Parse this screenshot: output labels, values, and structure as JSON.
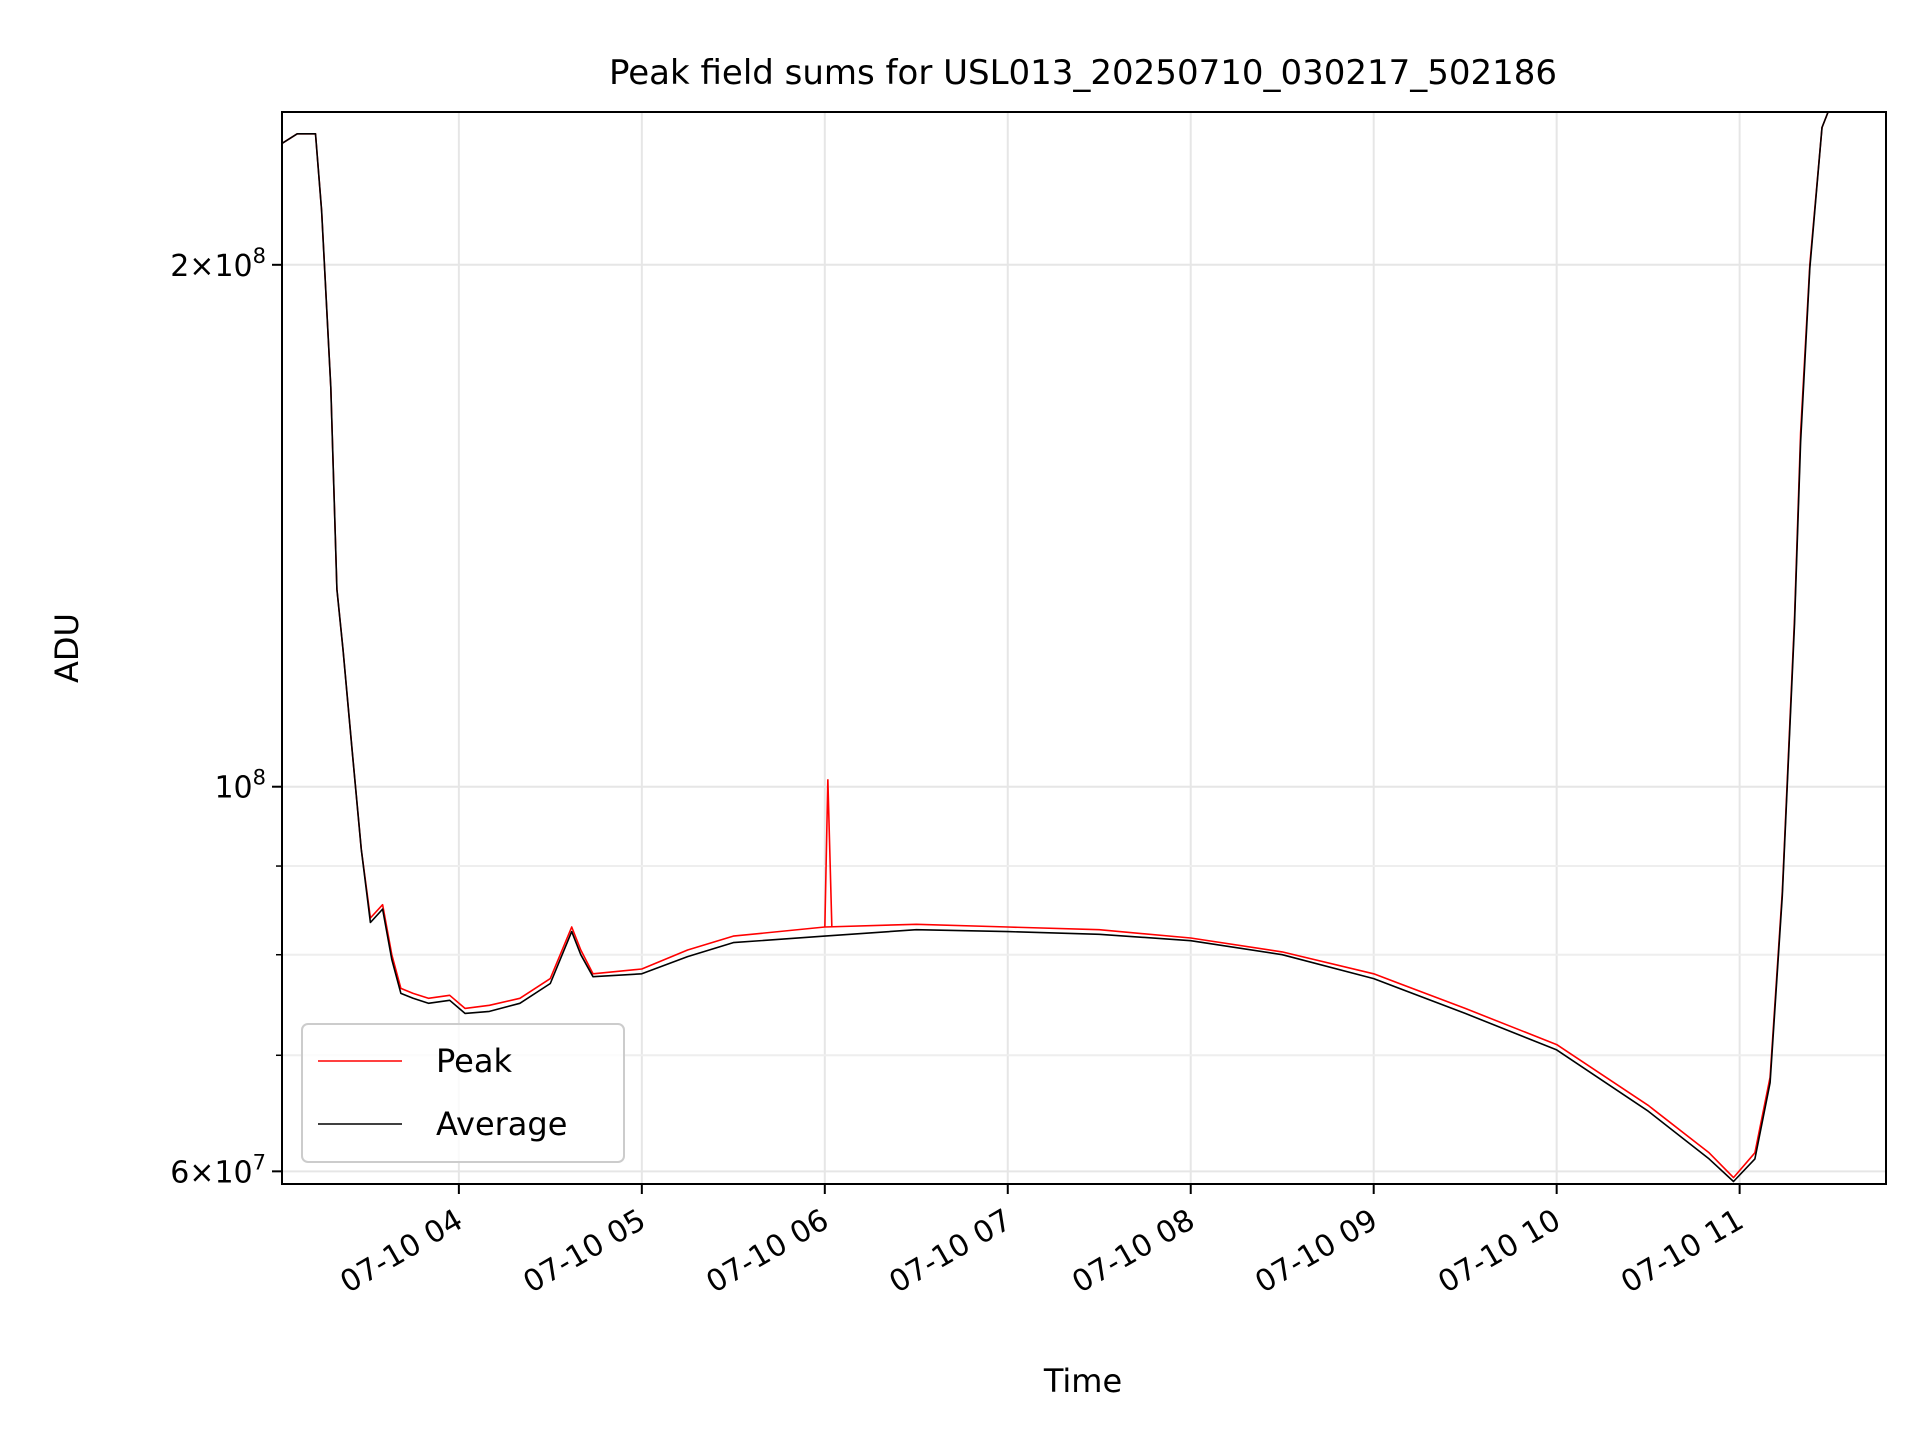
{
  "chart_data": {
    "type": "line",
    "title": "Peak field sums for USL013_20250710_030217_502186",
    "xlabel": "Time",
    "ylabel": "ADU",
    "yscale": "log",
    "xlim": [
      "2025-07-10 03:02",
      "2025-07-10 11:48"
    ],
    "ylim": [
      59000000,
      245000000
    ],
    "grid": true,
    "legend_position": "lower-left",
    "x_ticks": [
      {
        "value": "2025-07-10 04:00",
        "label": "07-10 04"
      },
      {
        "value": "2025-07-10 05:00",
        "label": "07-10 05"
      },
      {
        "value": "2025-07-10 06:00",
        "label": "07-10 06"
      },
      {
        "value": "2025-07-10 07:00",
        "label": "07-10 07"
      },
      {
        "value": "2025-07-10 08:00",
        "label": "07-10 08"
      },
      {
        "value": "2025-07-10 09:00",
        "label": "07-10 09"
      },
      {
        "value": "2025-07-10 10:00",
        "label": "07-10 10"
      },
      {
        "value": "2025-07-10 11:00",
        "label": "07-10 11"
      }
    ],
    "y_ticks": [
      {
        "value": 60000000,
        "mantissa": "6",
        "exponent": "7"
      },
      {
        "value": 100000000,
        "mantissa": "",
        "exponent": "8"
      },
      {
        "value": 200000000,
        "mantissa": "2",
        "exponent": "8"
      }
    ],
    "y_minor_ticks": [
      70000000,
      80000000,
      90000000
    ],
    "series": [
      {
        "name": "Peak",
        "color": "#ff0000",
        "points": [
          [
            "2025-07-10 03:02",
            235000000
          ],
          [
            "2025-07-10 03:07",
            238000000
          ],
          [
            "2025-07-10 03:13",
            238000000
          ],
          [
            "2025-07-10 03:15",
            215000000
          ],
          [
            "2025-07-10 03:18",
            170000000
          ],
          [
            "2025-07-10 03:20",
            130000000
          ],
          [
            "2025-07-10 03:22",
            120000000
          ],
          [
            "2025-07-10 03:25",
            105000000
          ],
          [
            "2025-07-10 03:28",
            92000000
          ],
          [
            "2025-07-10 03:31",
            84000000
          ],
          [
            "2025-07-10 03:35",
            85500000
          ],
          [
            "2025-07-10 03:38",
            80000000
          ],
          [
            "2025-07-10 03:41",
            76500000
          ],
          [
            "2025-07-10 03:45",
            76000000
          ],
          [
            "2025-07-10 03:50",
            75500000
          ],
          [
            "2025-07-10 03:57",
            75800000
          ],
          [
            "2025-07-10 04:02",
            74500000
          ],
          [
            "2025-07-10 04:10",
            74800000
          ],
          [
            "2025-07-10 04:20",
            75500000
          ],
          [
            "2025-07-10 04:30",
            77500000
          ],
          [
            "2025-07-10 04:37",
            83000000
          ],
          [
            "2025-07-10 04:40",
            80500000
          ],
          [
            "2025-07-10 04:44",
            78000000
          ],
          [
            "2025-07-10 05:00",
            78500000
          ],
          [
            "2025-07-10 05:15",
            80500000
          ],
          [
            "2025-07-10 05:30",
            82000000
          ],
          [
            "2025-07-10 06:00",
            83000000
          ],
          [
            "2025-07-10 06:30",
            83300000
          ],
          [
            "2025-07-10 07:00",
            83000000
          ],
          [
            "2025-07-10 07:30",
            82700000
          ],
          [
            "2025-07-10 08:00",
            81800000
          ],
          [
            "2025-07-10 08:30",
            80300000
          ],
          [
            "2025-07-10 09:00",
            78000000
          ],
          [
            "2025-07-10 09:30",
            74500000
          ],
          [
            "2025-07-10 10:00",
            71000000
          ],
          [
            "2025-07-10 10:30",
            65500000
          ],
          [
            "2025-07-10 10:50",
            61500000
          ],
          [
            "2025-07-10 10:58",
            59500000
          ],
          [
            "2025-07-10 11:05",
            61500000
          ],
          [
            "2025-07-10 11:10",
            68000000
          ],
          [
            "2025-07-10 11:14",
            87000000
          ],
          [
            "2025-07-10 11:18",
            125000000
          ],
          [
            "2025-07-10 11:20",
            160000000
          ],
          [
            "2025-07-10 11:23",
            200000000
          ],
          [
            "2025-07-10 11:27",
            240000000
          ],
          [
            "2025-07-10 11:29",
            245000000
          ]
        ],
        "spikes": [
          [
            "2025-07-10 06:01",
            101000000
          ]
        ]
      },
      {
        "name": "Average",
        "color": "#000000",
        "points": [
          [
            "2025-07-10 03:02",
            235000000
          ],
          [
            "2025-07-10 03:07",
            238000000
          ],
          [
            "2025-07-10 03:13",
            238000000
          ],
          [
            "2025-07-10 03:15",
            215000000
          ],
          [
            "2025-07-10 03:18",
            170000000
          ],
          [
            "2025-07-10 03:20",
            130000000
          ],
          [
            "2025-07-10 03:22",
            120000000
          ],
          [
            "2025-07-10 03:25",
            105000000
          ],
          [
            "2025-07-10 03:28",
            92000000
          ],
          [
            "2025-07-10 03:31",
            83500000
          ],
          [
            "2025-07-10 03:35",
            85000000
          ],
          [
            "2025-07-10 03:38",
            79500000
          ],
          [
            "2025-07-10 03:41",
            76000000
          ],
          [
            "2025-07-10 03:45",
            75500000
          ],
          [
            "2025-07-10 03:50",
            75000000
          ],
          [
            "2025-07-10 03:57",
            75300000
          ],
          [
            "2025-07-10 04:02",
            74000000
          ],
          [
            "2025-07-10 04:10",
            74200000
          ],
          [
            "2025-07-10 04:20",
            75000000
          ],
          [
            "2025-07-10 04:30",
            77000000
          ],
          [
            "2025-07-10 04:37",
            82500000
          ],
          [
            "2025-07-10 04:40",
            80000000
          ],
          [
            "2025-07-10 04:44",
            77700000
          ],
          [
            "2025-07-10 05:00",
            78000000
          ],
          [
            "2025-07-10 05:15",
            79800000
          ],
          [
            "2025-07-10 05:30",
            81300000
          ],
          [
            "2025-07-10 06:00",
            82000000
          ],
          [
            "2025-07-10 06:30",
            82700000
          ],
          [
            "2025-07-10 07:00",
            82500000
          ],
          [
            "2025-07-10 07:30",
            82200000
          ],
          [
            "2025-07-10 08:00",
            81500000
          ],
          [
            "2025-07-10 08:30",
            80000000
          ],
          [
            "2025-07-10 09:00",
            77500000
          ],
          [
            "2025-07-10 09:30",
            74000000
          ],
          [
            "2025-07-10 10:00",
            70500000
          ],
          [
            "2025-07-10 10:30",
            65000000
          ],
          [
            "2025-07-10 10:50",
            61000000
          ],
          [
            "2025-07-10 10:58",
            59200000
          ],
          [
            "2025-07-10 11:05",
            61000000
          ],
          [
            "2025-07-10 11:10",
            67500000
          ],
          [
            "2025-07-10 11:14",
            86500000
          ],
          [
            "2025-07-10 11:18",
            124000000
          ],
          [
            "2025-07-10 11:20",
            158000000
          ],
          [
            "2025-07-10 11:23",
            199000000
          ],
          [
            "2025-07-10 11:27",
            240000000
          ],
          [
            "2025-07-10 11:29",
            245000000
          ]
        ]
      }
    ]
  }
}
